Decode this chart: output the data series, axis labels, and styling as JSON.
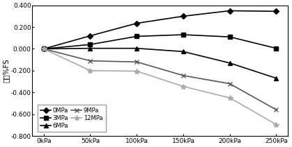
{
  "x_labels": [
    "0kPa",
    "50kPa",
    "100kPa",
    "150kPa",
    "200kPa",
    "250kPa"
  ],
  "x_values": [
    0,
    50,
    100,
    150,
    200,
    250
  ],
  "series": [
    {
      "label": "0MPa",
      "color": "#000000",
      "marker": "D",
      "markersize": 4,
      "linewidth": 1.2,
      "linestyle": "-",
      "markerfacecolor": "#000000",
      "values": [
        0.0,
        0.12,
        0.235,
        0.3,
        0.35,
        0.345
      ]
    },
    {
      "label": "3MPa",
      "color": "#000000",
      "marker": "s",
      "markersize": 4,
      "linewidth": 1.2,
      "linestyle": "-",
      "markerfacecolor": "#000000",
      "values": [
        0.0,
        0.04,
        0.115,
        0.13,
        0.11,
        0.005
      ]
    },
    {
      "label": "6MPa",
      "color": "#000000",
      "marker": "^",
      "markersize": 4,
      "linewidth": 1.2,
      "linestyle": "-",
      "markerfacecolor": "#000000",
      "values": [
        0.0,
        0.005,
        0.005,
        -0.025,
        -0.13,
        -0.27
      ]
    },
    {
      "label": "9MPa",
      "color": "#555555",
      "marker": "x",
      "markersize": 5,
      "linewidth": 1.2,
      "linestyle": "-",
      "markerfacecolor": "#555555",
      "values": [
        0.0,
        -0.11,
        -0.12,
        -0.245,
        -0.32,
        -0.56
      ]
    },
    {
      "label": "12MPa",
      "color": "#aaaaaa",
      "marker": "*",
      "markersize": 6,
      "linewidth": 1.2,
      "linestyle": "-",
      "markerfacecolor": "#aaaaaa",
      "values": [
        0.0,
        -0.2,
        -0.205,
        -0.345,
        -0.45,
        -0.695
      ]
    }
  ],
  "ylabel": "误差%FS",
  "ylim": [
    -0.8,
    0.4
  ],
  "yticks": [
    -0.8,
    -0.6,
    -0.4,
    -0.2,
    0.0,
    0.2,
    0.4
  ],
  "ytick_labels": [
    "-0.800",
    "-0.600",
    "-0.400",
    "-0.200",
    "0.000",
    "0.200",
    "0.400"
  ],
  "legend_loc": "lower left",
  "legend_ncol": 2,
  "background_color": "#ffffff",
  "title": "",
  "figsize": [
    4.19,
    2.12
  ],
  "dpi": 100
}
